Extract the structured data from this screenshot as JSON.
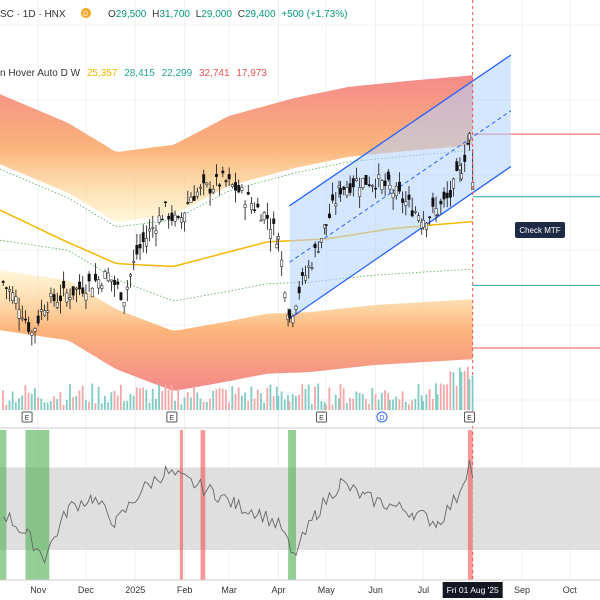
{
  "header": {
    "symbol": "SC · 1D · HNX",
    "dot_color": "#f5a623",
    "open_label": "O",
    "open": "29,500",
    "high_label": "H",
    "high": "31,700",
    "low_label": "L",
    "low": "29,000",
    "close_label": "C",
    "close": "29,400",
    "change": "+500 (+1.73%)",
    "value_color": "#089981"
  },
  "indicator_legend": {
    "name": "n Hover Auto D W",
    "values": [
      {
        "text": "25,357",
        "color": "#f5b800"
      },
      {
        "text": "28,415",
        "color": "#26a69a"
      },
      {
        "text": "22,299",
        "color": "#26a69a"
      },
      {
        "text": "32,741",
        "color": "#ef5350"
      },
      {
        "text": "17,973",
        "color": "#ef5350"
      }
    ]
  },
  "check_button": {
    "label": "Check MTF"
  },
  "earnings_markers": [
    {
      "letter": "E",
      "date": "2024-10-25"
    },
    {
      "letter": "E",
      "date": "2025-01-24"
    },
    {
      "letter": "E",
      "date": "2025-04-28"
    },
    {
      "letter": "D",
      "date": "2025-06-05"
    },
    {
      "letter": "E",
      "date": "2025-07-30"
    }
  ],
  "x_axis": {
    "ticks": [
      {
        "label": "Nov",
        "date": "2024-11-01"
      },
      {
        "label": "Dec",
        "date": "2024-12-01"
      },
      {
        "label": "2025",
        "date": "2025-01-01"
      },
      {
        "label": "Feb",
        "date": "2025-02-01"
      },
      {
        "label": "Mar",
        "date": "2025-03-01"
      },
      {
        "label": "Apr",
        "date": "2025-04-01"
      },
      {
        "label": "May",
        "date": "2025-05-01"
      },
      {
        "label": "Jun",
        "date": "2025-06-01"
      },
      {
        "label": "Jul",
        "date": "2025-07-01"
      },
      {
        "label": "Sep",
        "date": "2025-09-01"
      },
      {
        "label": "Oct",
        "date": "2025-10-01"
      }
    ],
    "current_label": "Fri 01 Aug '25",
    "current_date": "2025-08-01"
  },
  "chart_data": {
    "type": "candlestick",
    "x_range": [
      "2024-10-08",
      "2025-10-20"
    ],
    "y_range": [
      13000,
      42000
    ],
    "price_series": [
      {
        "date": "2024-10-10",
        "close": 22500
      },
      {
        "date": "2024-10-20",
        "close": 21000
      },
      {
        "date": "2024-10-28",
        "close": 19000
      },
      {
        "date": "2024-11-05",
        "close": 21000
      },
      {
        "date": "2024-11-15",
        "close": 21500
      },
      {
        "date": "2024-11-25",
        "close": 22000
      },
      {
        "date": "2024-12-05",
        "close": 22500
      },
      {
        "date": "2024-12-15",
        "close": 23000
      },
      {
        "date": "2024-12-25",
        "close": 21500
      },
      {
        "date": "2025-01-02",
        "close": 24500
      },
      {
        "date": "2025-01-10",
        "close": 26000
      },
      {
        "date": "2025-01-20",
        "close": 27500
      },
      {
        "date": "2025-01-28",
        "close": 26500
      },
      {
        "date": "2025-02-05",
        "close": 28500
      },
      {
        "date": "2025-02-15",
        "close": 29000
      },
      {
        "date": "2025-02-25",
        "close": 29500
      },
      {
        "date": "2025-03-05",
        "close": 29000
      },
      {
        "date": "2025-03-15",
        "close": 28000
      },
      {
        "date": "2025-03-25",
        "close": 27000
      },
      {
        "date": "2025-04-01",
        "close": 25500
      },
      {
        "date": "2025-04-08",
        "close": 20000
      },
      {
        "date": "2025-04-14",
        "close": 22000
      },
      {
        "date": "2025-04-22",
        "close": 24000
      },
      {
        "date": "2025-05-01",
        "close": 26500
      },
      {
        "date": "2025-05-10",
        "close": 29000
      },
      {
        "date": "2025-05-20",
        "close": 29500
      },
      {
        "date": "2025-06-01",
        "close": 29500
      },
      {
        "date": "2025-06-10",
        "close": 29000
      },
      {
        "date": "2025-06-20",
        "close": 28000
      },
      {
        "date": "2025-07-01",
        "close": 27000
      },
      {
        "date": "2025-07-10",
        "close": 27500
      },
      {
        "date": "2025-07-18",
        "close": 28500
      },
      {
        "date": "2025-07-25",
        "close": 30500
      },
      {
        "date": "2025-07-30",
        "close": 32500
      },
      {
        "date": "2025-08-01",
        "close": 29400
      }
    ],
    "ma_yellow": [
      {
        "date": "2024-10-08",
        "value": 27500
      },
      {
        "date": "2024-11-15",
        "value": 25500
      },
      {
        "date": "2024-12-20",
        "value": 23800
      },
      {
        "date": "2025-01-25",
        "value": 23600
      },
      {
        "date": "2025-02-25",
        "value": 24500
      },
      {
        "date": "2025-03-25",
        "value": 25300
      },
      {
        "date": "2025-05-01",
        "value": 25500
      },
      {
        "date": "2025-06-10",
        "value": 26200
      },
      {
        "date": "2025-07-10",
        "value": 26500
      },
      {
        "date": "2025-08-01",
        "value": 26700
      }
    ],
    "upper_band": [
      {
        "date": "2024-10-08",
        "value": 35500
      },
      {
        "date": "2024-11-20",
        "value": 33500
      },
      {
        "date": "2024-12-20",
        "value": 31500
      },
      {
        "date": "2025-01-25",
        "value": 32000
      },
      {
        "date": "2025-03-01",
        "value": 34000
      },
      {
        "date": "2025-04-10",
        "value": 35200
      },
      {
        "date": "2025-05-15",
        "value": 36000
      },
      {
        "date": "2025-06-20",
        "value": 36400
      },
      {
        "date": "2025-08-01",
        "value": 36800
      }
    ],
    "lower_band": [
      {
        "date": "2024-10-08",
        "value": 19200
      },
      {
        "date": "2024-11-20",
        "value": 18500
      },
      {
        "date": "2024-12-20",
        "value": 16500
      },
      {
        "date": "2025-01-25",
        "value": 15000
      },
      {
        "date": "2025-02-25",
        "value": 15600
      },
      {
        "date": "2025-03-25",
        "value": 16200
      },
      {
        "date": "2025-04-20",
        "value": 16300
      },
      {
        "date": "2025-06-01",
        "value": 16800
      },
      {
        "date": "2025-08-01",
        "value": 17200
      }
    ],
    "channel": {
      "start_date": "2025-04-08",
      "end_date": "2025-08-25",
      "upper": [
        27800,
        38200
      ],
      "lower": [
        20000,
        30500
      ]
    },
    "horizontal_levels": [
      {
        "value": 32741,
        "color": "#ef5350"
      },
      {
        "value": 28415,
        "color": "#26a69a"
      },
      {
        "value": 22299,
        "color": "#26a69a"
      },
      {
        "value": 17973,
        "color": "#ef5350"
      }
    ],
    "oscillator": {
      "y_range": [
        0,
        100
      ],
      "band": [
        20,
        75
      ],
      "values": [
        {
          "date": "2024-10-10",
          "value": 45
        },
        {
          "date": "2024-10-25",
          "value": 30
        },
        {
          "date": "2024-11-05",
          "value": 15
        },
        {
          "date": "2024-11-20",
          "value": 48
        },
        {
          "date": "2024-12-05",
          "value": 55
        },
        {
          "date": "2024-12-20",
          "value": 38
        },
        {
          "date": "2025-01-05",
          "value": 60
        },
        {
          "date": "2025-01-20",
          "value": 72
        },
        {
          "date": "2025-02-05",
          "value": 65
        },
        {
          "date": "2025-02-20",
          "value": 58
        },
        {
          "date": "2025-03-05",
          "value": 50
        },
        {
          "date": "2025-03-20",
          "value": 45
        },
        {
          "date": "2025-04-03",
          "value": 35
        },
        {
          "date": "2025-04-10",
          "value": 15
        },
        {
          "date": "2025-04-25",
          "value": 45
        },
        {
          "date": "2025-05-10",
          "value": 65
        },
        {
          "date": "2025-05-25",
          "value": 55
        },
        {
          "date": "2025-06-10",
          "value": 50
        },
        {
          "date": "2025-06-25",
          "value": 45
        },
        {
          "date": "2025-07-10",
          "value": 38
        },
        {
          "date": "2025-07-22",
          "value": 55
        },
        {
          "date": "2025-07-30",
          "value": 78
        },
        {
          "date": "2025-08-01",
          "value": 68
        }
      ],
      "zones": [
        {
          "start": "2024-10-08",
          "end": "2024-10-12",
          "color": "#4caf50"
        },
        {
          "start": "2024-10-24",
          "end": "2024-11-08",
          "color": "#4caf50"
        },
        {
          "start": "2025-01-29",
          "end": "2025-01-31",
          "color": "#ef5350"
        },
        {
          "start": "2025-02-11",
          "end": "2025-02-14",
          "color": "#ef5350"
        },
        {
          "start": "2025-04-07",
          "end": "2025-04-12",
          "color": "#4caf50"
        },
        {
          "start": "2025-07-29",
          "end": "2025-08-01",
          "color": "#ef5350"
        }
      ]
    }
  }
}
